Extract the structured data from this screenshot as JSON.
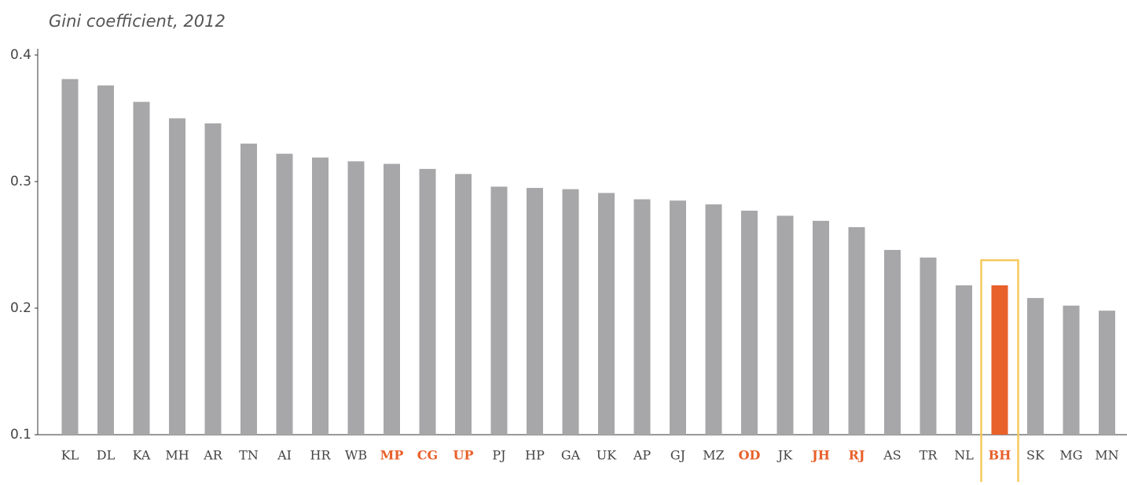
{
  "chart_data": {
    "type": "bar",
    "title": "Gini coefficient, 2012",
    "categories": [
      "KL",
      "DL",
      "KA",
      "MH",
      "AR",
      "TN",
      "AI",
      "HR",
      "WB",
      "MP",
      "CG",
      "UP",
      "PJ",
      "HP",
      "GA",
      "UK",
      "AP",
      "GJ",
      "MZ",
      "OD",
      "JK",
      "JH",
      "RJ",
      "AS",
      "TR",
      "NL",
      "BH",
      "SK",
      "MG",
      "MN"
    ],
    "values": [
      0.381,
      0.376,
      0.363,
      0.35,
      0.346,
      0.33,
      0.322,
      0.319,
      0.316,
      0.314,
      0.31,
      0.306,
      0.296,
      0.295,
      0.294,
      0.291,
      0.286,
      0.285,
      0.282,
      0.277,
      0.273,
      0.269,
      0.264,
      0.246,
      0.24,
      0.218,
      0.218,
      0.208,
      0.202,
      0.198
    ],
    "color": "#a7a7a9",
    "highlight_color": "#e8602a",
    "highlighted_bars": [
      26
    ],
    "highlighted_labels": [
      9,
      10,
      11,
      19,
      21,
      22,
      26
    ],
    "box_color": "#f6c95a",
    "ylim": [
      0.1,
      0.4
    ],
    "yticks": [
      0.1,
      0.2,
      0.3,
      0.4
    ],
    "grid": false
  }
}
